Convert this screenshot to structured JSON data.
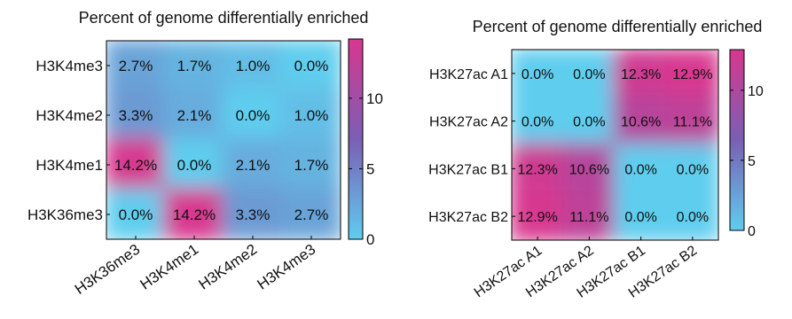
{
  "chart_data": [
    {
      "type": "heatmap",
      "title": "Percent of genome differentially enriched",
      "rows": [
        "H3K4me3",
        "H3K4me2",
        "H3K4me1",
        "H3K36me3"
      ],
      "columns": [
        "H3K36me3",
        "H3K4me1",
        "H3K4me2",
        "H3K4me3"
      ],
      "values": [
        [
          2.7,
          1.7,
          1.0,
          0.0
        ],
        [
          3.3,
          2.1,
          0.0,
          1.0
        ],
        [
          14.2,
          0.0,
          2.1,
          1.7
        ],
        [
          0.0,
          14.2,
          3.3,
          2.7
        ]
      ],
      "cell_labels": [
        [
          "2.7%",
          "1.7%",
          "1.0%",
          "0.0%"
        ],
        [
          "3.3%",
          "2.1%",
          "0.0%",
          "1.0%"
        ],
        [
          "14.2%",
          "0.0%",
          "2.1%",
          "1.7%"
        ],
        [
          "0.0%",
          "14.2%",
          "3.3%",
          "2.7%"
        ]
      ],
      "colorbar": {
        "min": 0,
        "max": 14.2,
        "ticks": [
          0,
          5,
          10
        ]
      }
    },
    {
      "type": "heatmap",
      "title": "Percent of genome differentially enriched",
      "rows": [
        "H3K27ac A1",
        "H3K27ac A2",
        "H3K27ac B1",
        "H3K27ac B2"
      ],
      "columns": [
        "H3K27ac A1",
        "H3K27ac A2",
        "H3K27ac B1",
        "H3K27ac B2"
      ],
      "values": [
        [
          0.0,
          0.0,
          12.3,
          12.9
        ],
        [
          0.0,
          0.0,
          10.6,
          11.1
        ],
        [
          12.3,
          10.6,
          0.0,
          0.0
        ],
        [
          12.9,
          11.1,
          0.0,
          0.0
        ]
      ],
      "cell_labels": [
        [
          "0.0%",
          "0.0%",
          "12.3%",
          "12.9%"
        ],
        [
          "0.0%",
          "0.0%",
          "10.6%",
          "11.1%"
        ],
        [
          "12.3%",
          "10.6%",
          "0.0%",
          "0.0%"
        ],
        [
          "12.9%",
          "11.1%",
          "0.0%",
          "0.0%"
        ]
      ],
      "colorbar": {
        "min": 0,
        "max": 12.9,
        "ticks": [
          0,
          5,
          10
        ]
      }
    }
  ],
  "colors": {
    "low": "#5fcdee",
    "mid": "#7a5fb4",
    "high": "#d8378f"
  }
}
